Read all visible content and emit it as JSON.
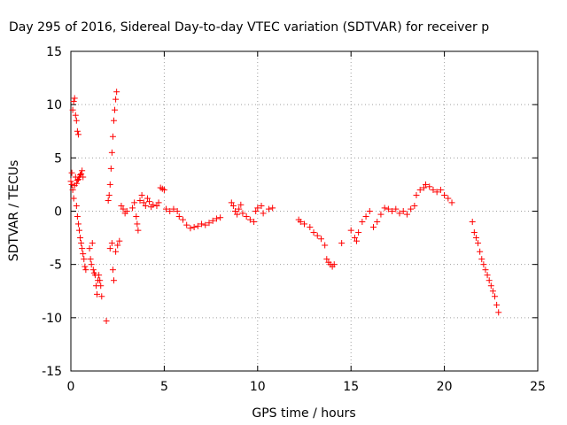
{
  "chart_data": {
    "type": "scatter",
    "title": "Day 295 of 2016, Sidereal Day-to-day VTEC variation (SDTVAR) for receiver p",
    "xlabel": "GPS time / hours",
    "ylabel": "SDTVAR / TECUs",
    "xlim": [
      0,
      25
    ],
    "ylim": [
      -15,
      15
    ],
    "xticks": [
      0,
      5,
      10,
      15,
      20,
      25
    ],
    "yticks": [
      -15,
      -10,
      -5,
      0,
      5,
      10,
      15
    ],
    "grid": true,
    "marker": "+",
    "series_color": "#ff0000",
    "series": [
      {
        "points": [
          [
            0.0,
            2.8
          ],
          [
            0.05,
            3.6
          ],
          [
            0.1,
            9.5
          ],
          [
            0.15,
            10.3
          ],
          [
            0.2,
            10.6
          ],
          [
            0.25,
            9.0
          ],
          [
            0.3,
            8.5
          ],
          [
            0.35,
            7.5
          ],
          [
            0.4,
            7.2
          ],
          [
            0.05,
            2.5
          ],
          [
            0.1,
            2.0
          ],
          [
            0.15,
            1.2
          ],
          [
            0.2,
            2.4
          ],
          [
            0.25,
            3.2
          ],
          [
            0.3,
            2.6
          ],
          [
            0.35,
            2.9
          ],
          [
            0.4,
            3.0
          ],
          [
            0.45,
            3.2
          ],
          [
            0.5,
            3.4
          ],
          [
            0.55,
            3.5
          ],
          [
            0.6,
            3.8
          ],
          [
            0.65,
            3.2
          ],
          [
            0.3,
            0.5
          ],
          [
            0.35,
            -0.5
          ],
          [
            0.4,
            -1.2
          ],
          [
            0.45,
            -1.8
          ],
          [
            0.5,
            -2.5
          ],
          [
            0.55,
            -3.0
          ],
          [
            0.6,
            -3.5
          ],
          [
            0.65,
            -4.0
          ],
          [
            0.7,
            -4.5
          ],
          [
            0.75,
            -5.2
          ],
          [
            0.8,
            -5.5
          ],
          [
            1.0,
            -3.5
          ],
          [
            1.05,
            -4.5
          ],
          [
            1.1,
            -5.0
          ],
          [
            1.15,
            -3.0
          ],
          [
            1.2,
            -5.5
          ],
          [
            1.25,
            -5.8
          ],
          [
            1.3,
            -6.0
          ],
          [
            1.35,
            -7.0
          ],
          [
            1.4,
            -7.8
          ],
          [
            1.45,
            -6.5
          ],
          [
            1.5,
            -6.0
          ],
          [
            1.55,
            -6.5
          ],
          [
            1.6,
            -7.0
          ],
          [
            1.65,
            -8.0
          ],
          [
            1.9,
            -10.3
          ],
          [
            2.0,
            1.0
          ],
          [
            2.05,
            1.5
          ],
          [
            2.1,
            2.5
          ],
          [
            2.15,
            4.0
          ],
          [
            2.2,
            5.5
          ],
          [
            2.25,
            7.0
          ],
          [
            2.3,
            8.5
          ],
          [
            2.35,
            9.5
          ],
          [
            2.4,
            10.5
          ],
          [
            2.45,
            11.2
          ],
          [
            2.1,
            -3.5
          ],
          [
            2.2,
            -3.0
          ],
          [
            2.25,
            -5.5
          ],
          [
            2.3,
            -6.5
          ],
          [
            2.4,
            -3.8
          ],
          [
            2.5,
            -3.2
          ],
          [
            2.6,
            -2.8
          ],
          [
            2.7,
            0.5
          ],
          [
            2.8,
            0.2
          ],
          [
            2.9,
            -0.2
          ],
          [
            3.0,
            0.0
          ],
          [
            3.3,
            0.3
          ],
          [
            3.4,
            0.8
          ],
          [
            3.5,
            -0.5
          ],
          [
            3.55,
            -1.2
          ],
          [
            3.6,
            -1.8
          ],
          [
            3.7,
            1.0
          ],
          [
            3.8,
            1.5
          ],
          [
            3.9,
            0.8
          ],
          [
            4.0,
            0.5
          ],
          [
            4.1,
            1.2
          ],
          [
            4.2,
            0.9
          ],
          [
            4.3,
            0.4
          ],
          [
            4.4,
            0.6
          ],
          [
            4.6,
            0.5
          ],
          [
            4.7,
            0.8
          ],
          [
            4.8,
            2.2
          ],
          [
            4.9,
            2.1
          ],
          [
            5.0,
            2.0
          ],
          [
            5.1,
            0.2
          ],
          [
            5.3,
            0.0
          ],
          [
            5.5,
            0.2
          ],
          [
            5.7,
            0.0
          ],
          [
            5.8,
            -0.5
          ],
          [
            6.0,
            -0.8
          ],
          [
            6.2,
            -1.3
          ],
          [
            6.4,
            -1.6
          ],
          [
            6.6,
            -1.5
          ],
          [
            6.8,
            -1.4
          ],
          [
            7.0,
            -1.2
          ],
          [
            7.2,
            -1.3
          ],
          [
            7.4,
            -1.1
          ],
          [
            7.6,
            -0.9
          ],
          [
            7.8,
            -0.7
          ],
          [
            8.0,
            -0.6
          ],
          [
            8.6,
            0.8
          ],
          [
            8.7,
            0.5
          ],
          [
            8.8,
            0.0
          ],
          [
            8.9,
            -0.3
          ],
          [
            9.0,
            0.2
          ],
          [
            9.1,
            0.6
          ],
          [
            9.2,
            -0.2
          ],
          [
            9.4,
            -0.5
          ],
          [
            9.6,
            -0.8
          ],
          [
            9.8,
            -1.0
          ],
          [
            9.9,
            0.0
          ],
          [
            10.0,
            0.3
          ],
          [
            10.2,
            0.5
          ],
          [
            10.3,
            -0.2
          ],
          [
            10.6,
            0.2
          ],
          [
            10.8,
            0.3
          ],
          [
            12.2,
            -0.8
          ],
          [
            12.3,
            -1.0
          ],
          [
            12.5,
            -1.2
          ],
          [
            12.8,
            -1.5
          ],
          [
            13.0,
            -2.0
          ],
          [
            13.2,
            -2.3
          ],
          [
            13.4,
            -2.6
          ],
          [
            13.6,
            -3.2
          ],
          [
            13.7,
            -4.5
          ],
          [
            13.8,
            -4.8
          ],
          [
            13.9,
            -5.0
          ],
          [
            14.0,
            -5.2
          ],
          [
            14.1,
            -5.0
          ],
          [
            14.5,
            -3.0
          ],
          [
            15.0,
            -1.8
          ],
          [
            15.2,
            -2.5
          ],
          [
            15.3,
            -2.8
          ],
          [
            15.4,
            -2.0
          ],
          [
            15.6,
            -1.0
          ],
          [
            15.8,
            -0.5
          ],
          [
            16.0,
            0.0
          ],
          [
            16.2,
            -1.5
          ],
          [
            16.4,
            -1.0
          ],
          [
            16.6,
            -0.3
          ],
          [
            16.8,
            0.3
          ],
          [
            17.0,
            0.2
          ],
          [
            17.2,
            0.0
          ],
          [
            17.4,
            0.2
          ],
          [
            17.6,
            -0.2
          ],
          [
            17.8,
            0.0
          ],
          [
            18.0,
            -0.3
          ],
          [
            18.2,
            0.2
          ],
          [
            18.4,
            0.5
          ],
          [
            18.5,
            1.5
          ],
          [
            18.7,
            2.0
          ],
          [
            18.9,
            2.2
          ],
          [
            19.0,
            2.5
          ],
          [
            19.2,
            2.3
          ],
          [
            19.4,
            2.0
          ],
          [
            19.6,
            1.8
          ],
          [
            19.8,
            2.0
          ],
          [
            20.0,
            1.5
          ],
          [
            20.2,
            1.2
          ],
          [
            20.4,
            0.8
          ],
          [
            21.5,
            -1.0
          ],
          [
            21.6,
            -2.0
          ],
          [
            21.7,
            -2.5
          ],
          [
            21.8,
            -3.0
          ],
          [
            21.9,
            -3.8
          ],
          [
            22.0,
            -4.5
          ],
          [
            22.1,
            -5.0
          ],
          [
            22.2,
            -5.5
          ],
          [
            22.3,
            -6.0
          ],
          [
            22.4,
            -6.5
          ],
          [
            22.5,
            -7.0
          ],
          [
            22.6,
            -7.5
          ],
          [
            22.7,
            -8.0
          ],
          [
            22.8,
            -8.8
          ],
          [
            22.9,
            -9.5
          ]
        ]
      }
    ]
  }
}
